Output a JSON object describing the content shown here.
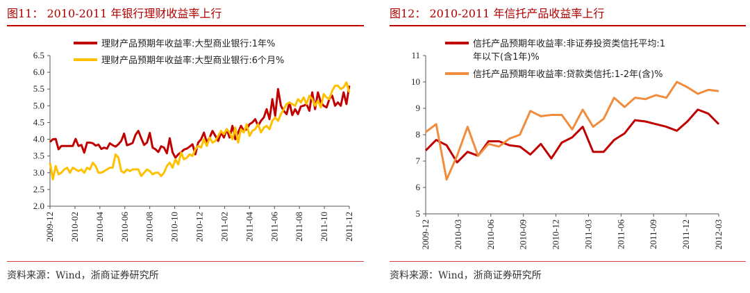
{
  "figures": [
    {
      "title": "图11： 2010-2011 年银行理财收益率上行",
      "source": "资料来源：Wind，浙商证券研究所"
    },
    {
      "title": "图12： 2010-2011 年信托产品收益率上行",
      "source": "资料来源：Wind，浙商证券研究所"
    }
  ],
  "chart_data": [
    {
      "type": "line",
      "title": "2010-2011 年银行理财收益率上行",
      "xlabel": "",
      "ylabel": "",
      "ylim": [
        2.0,
        6.5
      ],
      "yticks": [
        "2.0",
        "2.5",
        "3.0",
        "3.5",
        "4.0",
        "4.5",
        "5.0",
        "5.5",
        "6.0",
        "6.5"
      ],
      "xticks": [
        "2009-12",
        "2010-02",
        "2010-04",
        "2010-06",
        "2010-08",
        "2010-10",
        "2010-12",
        "2011-02",
        "2011-04",
        "2011-06",
        "2011-08",
        "2011-10",
        "2011-12"
      ],
      "x_range_weeks": [
        0,
        106
      ],
      "series": [
        {
          "name": "理财产品预期年收益率:大型商业银行:1年%",
          "color": "#c00000",
          "values": [
            3.92,
            4.0,
            4.01,
            3.7,
            3.8,
            3.8,
            3.8,
            3.8,
            3.8,
            4.01,
            3.8,
            3.83,
            3.6,
            3.9,
            3.9,
            3.88,
            3.81,
            3.84,
            3.71,
            3.75,
            3.72,
            3.88,
            3.82,
            3.78,
            3.85,
            3.95,
            4.17,
            3.82,
            3.85,
            3.89,
            4.13,
            4.25,
            4.03,
            3.83,
            3.9,
            4.19,
            3.75,
            3.7,
            3.62,
            3.79,
            3.75,
            3.58,
            4.03,
            3.61,
            3.45,
            3.55,
            3.61,
            3.69,
            3.72,
            3.78,
            3.85,
            3.55,
            3.9,
            4.0,
            4.2,
            3.9,
            4.05,
            4.25,
            4.1,
            3.95,
            4.2,
            4.05,
            4.3,
            4.05,
            4.4,
            4.0,
            4.2,
            4.4,
            4.25,
            4.3,
            4.45,
            4.5,
            4.6,
            4.4,
            4.55,
            4.65,
            4.9,
            4.6,
            5.2,
            4.7,
            5.5,
            5.0,
            4.85,
            4.75,
            5.1,
            4.72,
            4.9,
            4.75,
            4.98,
            5.0,
            5.05,
            4.85,
            5.4,
            4.9,
            5.4,
            5.1,
            5.0,
            4.95,
            5.2,
            5.3,
            5.0,
            5.1,
            5.0,
            5.4,
            5.05,
            5.6
          ]
        },
        {
          "name": "理财产品预期年收益率:大型商业银行:6个月%",
          "color": "#ffc000",
          "values": [
            3.3,
            2.8,
            3.2,
            2.95,
            3.0,
            3.1,
            3.15,
            3.0,
            3.15,
            3.1,
            3.05,
            3.1,
            3.0,
            3.15,
            3.1,
            3.3,
            3.2,
            3.0,
            3.0,
            3.05,
            3.1,
            3.15,
            3.15,
            3.55,
            3.45,
            3.05,
            3.0,
            3.1,
            3.05,
            3.1,
            3.1,
            3.1,
            2.9,
            3.0,
            3.1,
            3.05,
            2.95,
            3.0,
            3.0,
            2.9,
            3.0,
            3.2,
            3.3,
            3.15,
            3.4,
            3.25,
            3.6,
            3.4,
            3.45,
            3.55,
            3.5,
            3.7,
            3.8,
            3.75,
            4.0,
            3.8,
            4.05,
            3.9,
            3.95,
            4.1,
            4.25,
            4.15,
            4.3,
            4.2,
            4.0,
            4.35,
            3.9,
            4.3,
            4.2,
            4.45,
            4.1,
            4.25,
            4.3,
            4.45,
            4.2,
            4.35,
            4.4,
            4.3,
            4.55,
            4.65,
            4.55,
            4.75,
            4.9,
            5.05,
            5.1,
            5.05,
            5.0,
            5.2,
            5.1,
            5.25,
            5.05,
            5.3,
            5.2,
            5.0,
            5.15,
            4.95,
            5.35,
            5.25,
            5.2,
            5.45,
            5.6,
            5.6,
            5.5,
            5.55,
            5.7,
            5.4
          ]
        }
      ]
    },
    {
      "type": "line",
      "title": "2010-2011 年信托产品收益率上行",
      "xlabel": "",
      "ylabel": "",
      "ylim": [
        5,
        11
      ],
      "yticks": [
        "5",
        "6",
        "7",
        "8",
        "9",
        "10",
        "11"
      ],
      "xticks": [
        "2009-12",
        "2010-03",
        "2010-06",
        "2010-09",
        "2010-12",
        "2011-03",
        "2011-06",
        "2011-09",
        "2011-12",
        "2012-03"
      ],
      "x_range_months": [
        0,
        27
      ],
      "series": [
        {
          "name": "信托产品预期年收益率:非证券投资类信托平均:1年以下(含1年)%",
          "legend_lines": [
            "信托产品预期年收益率:非证券投资类信托平均:1",
            "年以下(含1年)%"
          ],
          "color": "#c00000",
          "values": [
            7.4,
            7.8,
            7.6,
            6.95,
            7.35,
            7.2,
            7.75,
            7.75,
            7.6,
            7.55,
            7.25,
            7.65,
            7.1,
            7.7,
            7.9,
            8.3,
            7.35,
            7.35,
            7.8,
            8.05,
            8.55,
            8.5,
            8.4,
            8.3,
            8.15,
            8.5,
            8.95,
            8.8,
            8.4
          ]
        },
        {
          "name": "信托产品预期年收益率:贷款类信托:1-2年(含)%",
          "legend_lines": [
            "信托产品预期年收益率:贷款类信托:1-2年(含)%"
          ],
          "color": "#f08c3c",
          "values": [
            8.1,
            8.4,
            6.3,
            7.2,
            8.3,
            7.2,
            7.65,
            7.55,
            7.85,
            8.0,
            8.9,
            8.7,
            8.75,
            8.75,
            8.2,
            8.95,
            8.3,
            8.6,
            9.4,
            9.05,
            9.4,
            9.35,
            9.5,
            9.4,
            10.0,
            9.8,
            9.55,
            9.7,
            9.65
          ]
        }
      ]
    }
  ]
}
